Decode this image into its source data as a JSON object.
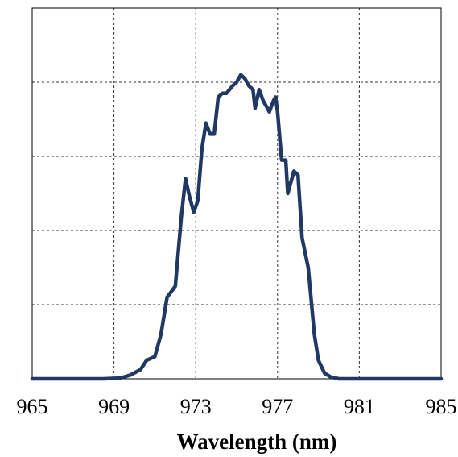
{
  "chart_data": {
    "type": "line",
    "title": "",
    "xlabel": "Wavelength (nm)",
    "ylabel": "",
    "xlim": [
      965,
      985
    ],
    "ylim": [
      0,
      1
    ],
    "x_ticks": [
      965,
      969,
      973,
      977,
      981,
      985
    ],
    "x_tick_labels": [
      "965",
      "969",
      "973",
      "977",
      "981",
      "985"
    ],
    "y_gridlines": [
      0.2,
      0.4,
      0.6,
      0.8,
      1.0
    ],
    "grid": true,
    "grid_style": "dashed",
    "y_tick_labels_shown": false,
    "line_color": "#1f3864",
    "series": [
      {
        "values": [
          [
            965.0,
            0.0
          ],
          [
            968.5,
            0.0
          ],
          [
            969.3,
            0.002
          ],
          [
            969.8,
            0.01
          ],
          [
            970.3,
            0.025
          ],
          [
            970.6,
            0.05
          ],
          [
            971.0,
            0.06
          ],
          [
            971.3,
            0.12
          ],
          [
            971.6,
            0.22
          ],
          [
            971.8,
            0.235
          ],
          [
            972.0,
            0.25
          ],
          [
            972.3,
            0.44
          ],
          [
            972.5,
            0.54
          ],
          [
            972.7,
            0.49
          ],
          [
            972.9,
            0.45
          ],
          [
            973.1,
            0.48
          ],
          [
            973.3,
            0.62
          ],
          [
            973.5,
            0.69
          ],
          [
            973.7,
            0.66
          ],
          [
            973.9,
            0.66
          ],
          [
            974.1,
            0.76
          ],
          [
            974.3,
            0.77
          ],
          [
            974.5,
            0.77
          ],
          [
            974.8,
            0.79
          ],
          [
            975.0,
            0.8
          ],
          [
            975.2,
            0.82
          ],
          [
            975.4,
            0.81
          ],
          [
            975.6,
            0.79
          ],
          [
            975.8,
            0.78
          ],
          [
            975.9,
            0.73
          ],
          [
            976.1,
            0.78
          ],
          [
            976.3,
            0.75
          ],
          [
            976.5,
            0.73
          ],
          [
            976.6,
            0.72
          ],
          [
            976.8,
            0.75
          ],
          [
            976.9,
            0.76
          ],
          [
            977.0,
            0.72
          ],
          [
            977.2,
            0.59
          ],
          [
            977.4,
            0.59
          ],
          [
            977.5,
            0.5
          ],
          [
            977.8,
            0.56
          ],
          [
            978.0,
            0.55
          ],
          [
            978.2,
            0.38
          ],
          [
            978.5,
            0.3
          ],
          [
            978.8,
            0.12
          ],
          [
            979.0,
            0.05
          ],
          [
            979.3,
            0.015
          ],
          [
            979.6,
            0.005
          ],
          [
            980.0,
            0.0
          ],
          [
            985.0,
            0.0
          ]
        ]
      }
    ]
  }
}
